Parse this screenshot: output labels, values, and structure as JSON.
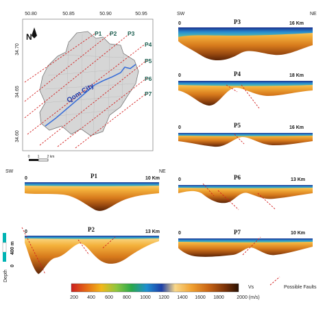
{
  "map": {
    "lon_ticks": [
      "50.80",
      "50.85",
      "50.90",
      "50.95"
    ],
    "lat_ticks": [
      "34.70",
      "34.65",
      "34.60"
    ],
    "city_label": "Qom City",
    "north_label": "N",
    "profile_labels": [
      "P1",
      "P2",
      "P3",
      "P4",
      "P5",
      "P6",
      "P7"
    ],
    "scale_ticks": [
      "0",
      "1",
      "2 km"
    ]
  },
  "profiles": [
    {
      "id": "P3",
      "dir_start": "SW",
      "dir_end": "NE",
      "start": "0",
      "length": "16 Km"
    },
    {
      "id": "P4",
      "start": "0",
      "length": "18 Km"
    },
    {
      "id": "P5",
      "start": "0",
      "length": "16 Km"
    },
    {
      "id": "P1",
      "dir_start": "SW",
      "dir_end": "NE",
      "start": "0",
      "length": "10 Km"
    },
    {
      "id": "P6",
      "start": "0",
      "length": "13 Km"
    },
    {
      "id": "P2",
      "start": "0",
      "length": "13 Km"
    },
    {
      "id": "P7",
      "start": "0",
      "length": "10 Km"
    }
  ],
  "depth_scale": {
    "value": "400 m",
    "zero": "0",
    "label": "Depth"
  },
  "colorbar": {
    "ticks": [
      "200",
      "400",
      "600",
      "800",
      "1000",
      "1200",
      "1400",
      "1600",
      "1800",
      "2000 (m/s)"
    ],
    "var_label": "Vs",
    "colors": [
      "#cc1f1f",
      "#e56a16",
      "#f2b81a",
      "#8ec63f",
      "#2aa84a",
      "#1f8fd0",
      "#1c3fa8",
      "#f8d88a",
      "#f0a030",
      "#c86414",
      "#7a3208",
      "#2b1203"
    ]
  },
  "legend": {
    "faults_label": "Possible Faults"
  }
}
